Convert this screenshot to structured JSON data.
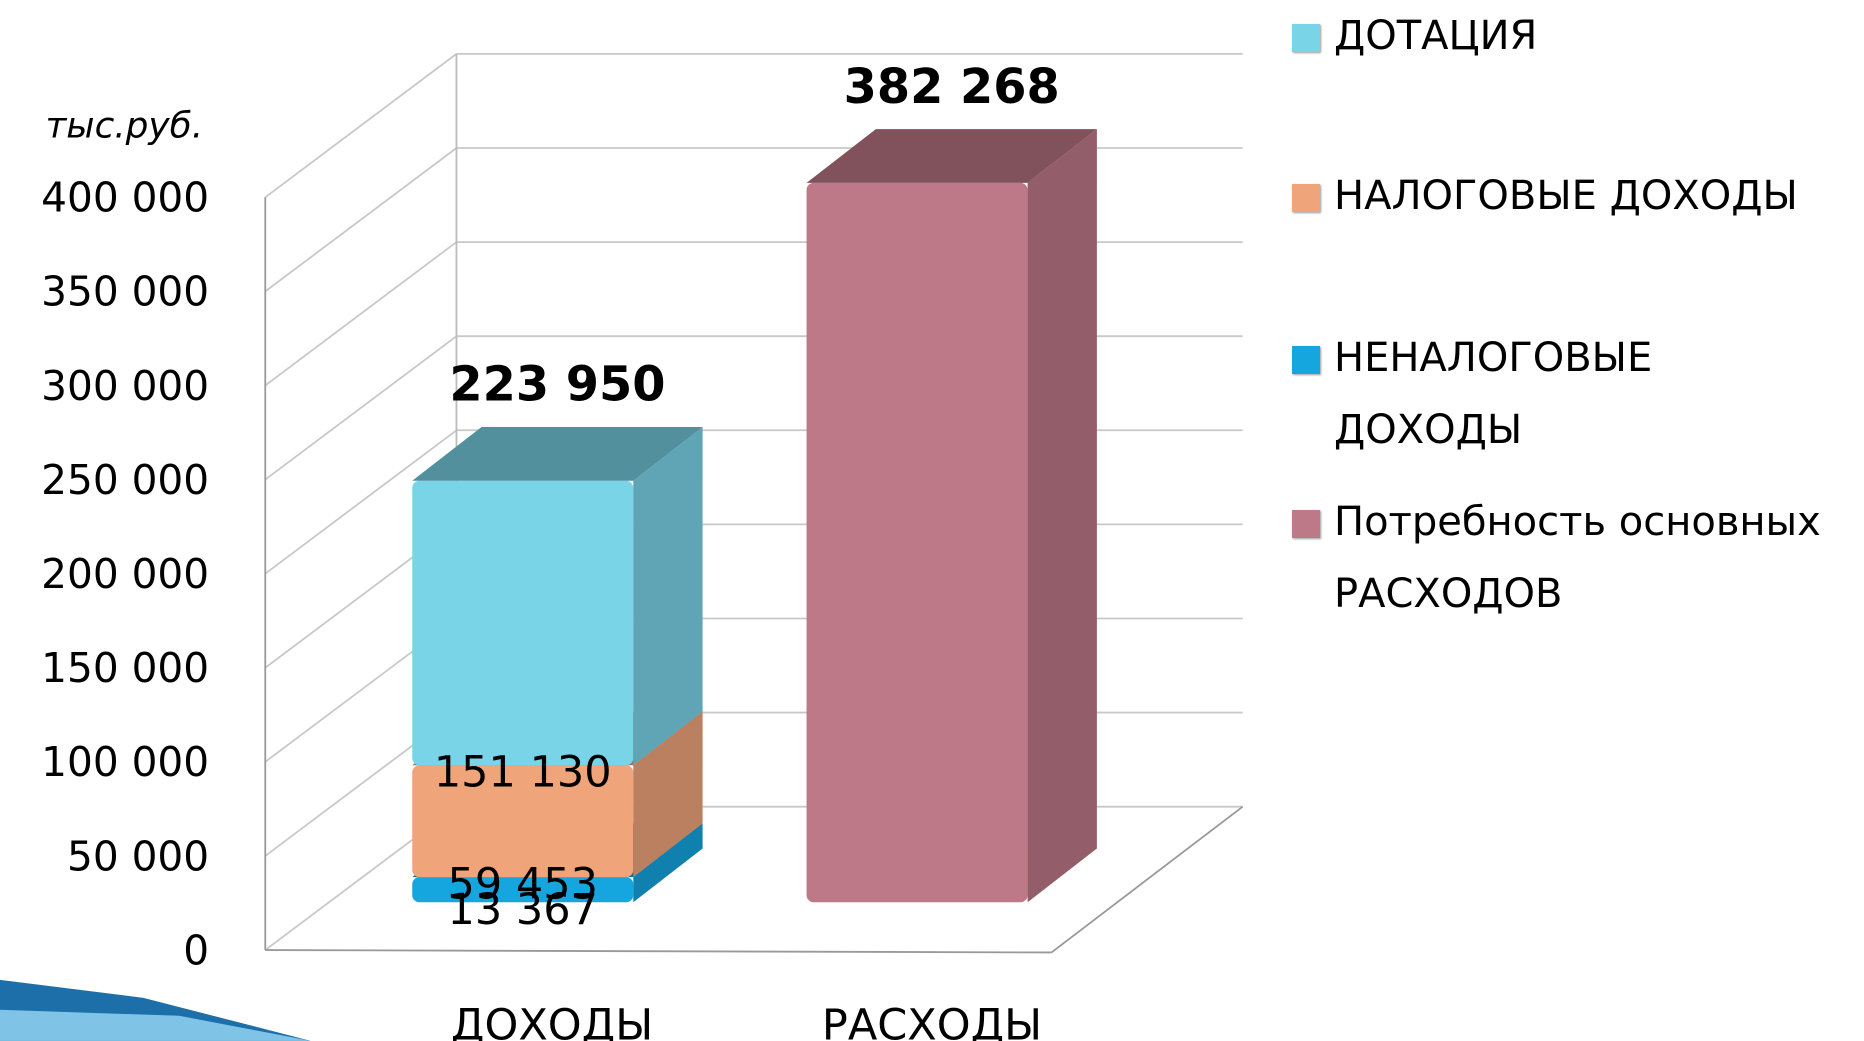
{
  "chart_data": {
    "type": "bar3d_stacked",
    "y_label": "тыс.руб.",
    "categories": [
      "ДОХОДЫ",
      "РАСХОДЫ"
    ],
    "series": [
      {
        "name": "ДОТАЦИЯ",
        "color": "#7ad4e8",
        "values": [
          151130,
          null
        ],
        "value_labels": [
          "151 130",
          null
        ]
      },
      {
        "name": "НАЛОГОВЫЕ ДОХОДЫ",
        "color": "#f0a47a",
        "values": [
          59453,
          null
        ],
        "value_labels": [
          "59 453",
          null
        ]
      },
      {
        "name": "НЕНАЛОГОВЫЕ ДОХОДЫ",
        "color": "#15a6e0",
        "values": [
          13367,
          null
        ],
        "value_labels": [
          "13 367",
          null
        ]
      },
      {
        "name": "Потребность основных РАСХОДОВ",
        "color": "#bd7987",
        "values": [
          null,
          382268
        ],
        "value_labels": [
          null,
          "382 268"
        ]
      }
    ],
    "totals": [
      223950,
      null
    ],
    "total_labels": [
      "223 950",
      null
    ],
    "ylim": [
      0,
      400000
    ],
    "yticks": [
      0,
      {
        "value": 50000,
        "label": "50 000"
      },
      {
        "value": 100000,
        "label": "100 000"
      },
      {
        "value": 150000,
        "label": "150 000"
      },
      {
        "value": 200000,
        "label": "200 000"
      },
      {
        "value": 250000,
        "label": "250 000"
      },
      {
        "value": 300000,
        "label": "300 000"
      },
      {
        "value": 350000,
        "label": "350 000"
      },
      {
        "value": 400000,
        "label": "400 000"
      }
    ],
    "grid": true,
    "legend": "right"
  }
}
